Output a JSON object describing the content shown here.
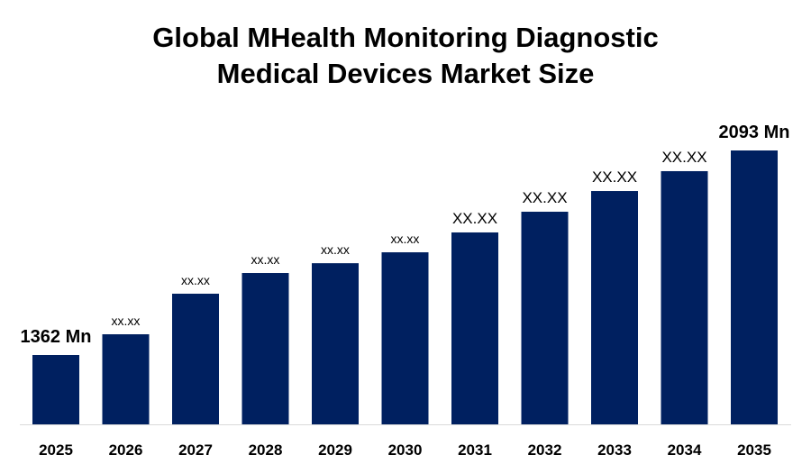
{
  "chart_data": {
    "type": "bar",
    "title_lines": [
      "Global MHealth Monitoring Diagnostic",
      "Medical Devices Market Size"
    ],
    "categories": [
      "2025",
      "2026",
      "2027",
      "2028",
      "2029",
      "2030",
      "2031",
      "2032",
      "2033",
      "2034",
      "2035"
    ],
    "values": [
      1362,
      1436,
      1581,
      1655,
      1690,
      1729,
      1800,
      1874,
      1948,
      2019,
      2093
    ],
    "data_labels": [
      "1362 Mn",
      "xx.xx",
      "xx.xx",
      "xx.xx",
      "xx.xx",
      "xx.xx",
      "XX.XX",
      "XX.XX",
      "XX.XX",
      "XX.XX",
      "2093 Mn"
    ],
    "unit": "Mn",
    "ylim": [
      1114,
      2093
    ],
    "xlabel": "",
    "ylabel": "",
    "grid": false,
    "legend": "none",
    "bar_color": "#002060"
  }
}
